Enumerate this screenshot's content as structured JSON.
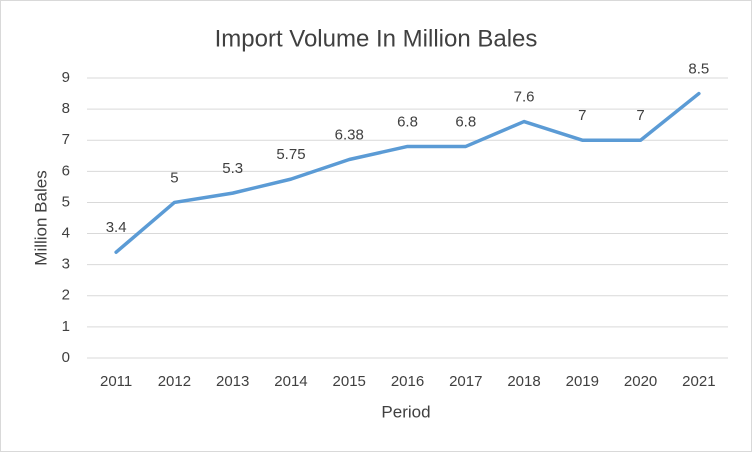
{
  "chart_data": {
    "type": "line",
    "title": "Import Volume In Million Bales",
    "x_label": "Period",
    "y_label": "Million Bales",
    "categories": [
      "2011",
      "2012",
      "2013",
      "2014",
      "2015",
      "2016",
      "2017",
      "2018",
      "2019",
      "2020",
      "2021"
    ],
    "values": [
      3.4,
      5,
      5.3,
      5.75,
      6.38,
      6.8,
      6.8,
      7.6,
      7,
      7,
      8.5
    ],
    "color": "#5b9bd5",
    "ylim": [
      0,
      9
    ],
    "yticks": [
      0,
      1,
      2,
      3,
      4,
      5,
      6,
      7,
      8,
      9
    ],
    "grid": true
  }
}
